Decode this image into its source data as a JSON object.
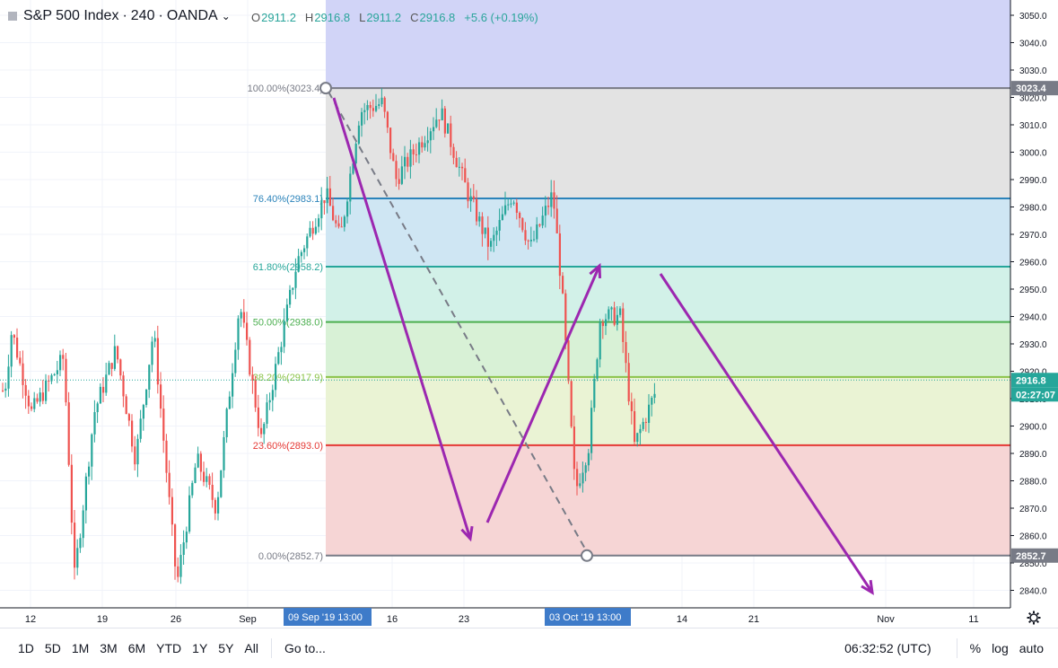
{
  "header": {
    "symbol": "S&P 500 Index",
    "interval": "240",
    "exchange": "OANDA",
    "sep": "·",
    "chevron": "⌄",
    "open_label": "O",
    "open": "2911.2",
    "high_label": "H",
    "high": "2916.8",
    "low_label": "L",
    "low": "2911.2",
    "close_label": "C",
    "close": "2916.8",
    "change": "+5.6 (+0.19%)"
  },
  "colors": {
    "up": "#26a69a",
    "down": "#ef5350",
    "arrow": "#9c27b0",
    "grid": "#f0f3fa"
  },
  "price_axis": {
    "ticks": [
      "3050.0",
      "3040.0",
      "3030.0",
      "3020.0",
      "3010.0",
      "3000.0",
      "2990.0",
      "2980.0",
      "2970.0",
      "2960.0",
      "2950.0",
      "2940.0",
      "2930.0",
      "2920.0",
      "2910.0",
      "2900.0",
      "2890.0",
      "2880.0",
      "2870.0",
      "2860.0",
      "2850.0",
      "2840.0"
    ],
    "tick_values": [
      3050,
      3040,
      3030,
      3020,
      3010,
      3000,
      2990,
      2980,
      2970,
      2960,
      2950,
      2940,
      2930,
      2920,
      2910,
      2900,
      2890,
      2880,
      2870,
      2860,
      2850,
      2840
    ],
    "last_price_label": "2916.8",
    "countdown": "02:27:07",
    "fib_top_label": "3023.4",
    "fib_bottom_label": "2852.7"
  },
  "fib_levels": [
    {
      "label": "100.00%(3023.4)",
      "price": 3023.4,
      "line": "#787b86",
      "fill": "#d1d4f7"
    },
    {
      "label": "76.40%(2983.1)",
      "price": 2983.1,
      "line": "#2b83ba",
      "fill": "#e3e3e3"
    },
    {
      "label": "61.80%(2958.2)",
      "price": 2958.2,
      "line": "#26a69a",
      "fill": "#cfe6f3"
    },
    {
      "label": "50.00%(2938.0)",
      "price": 2938.0,
      "line": "#4caf50",
      "fill": "#d2f1e8"
    },
    {
      "label": "38.20%(2917.9)",
      "price": 2917.9,
      "line": "#8bc34a",
      "fill": "#d8f1d6"
    },
    {
      "label": "23.60%(2893.0)",
      "price": 2893.0,
      "line": "#e53935",
      "fill": "#eaf3d4"
    },
    {
      "label": "0.00%(2852.7)",
      "price": 2852.7,
      "line": "#787b86",
      "fill": "#f6d5d5"
    }
  ],
  "time_axis": {
    "labels": [
      "12",
      "19",
      "26",
      "Sep",
      "16",
      "23",
      "14",
      "21",
      "Nov",
      "11"
    ],
    "highlights": [
      "09 Sep '19   13:00",
      "03 Oct '19   13:00"
    ]
  },
  "toolbar": {
    "ranges": [
      "1D",
      "5D",
      "1M",
      "3M",
      "6M",
      "YTD",
      "1Y",
      "5Y",
      "All"
    ],
    "goto": "Go to...",
    "clock": "06:32:52 (UTC)",
    "percent": "%",
    "log": "log",
    "auto": "auto",
    "settings_icon": "gear-icon"
  }
}
